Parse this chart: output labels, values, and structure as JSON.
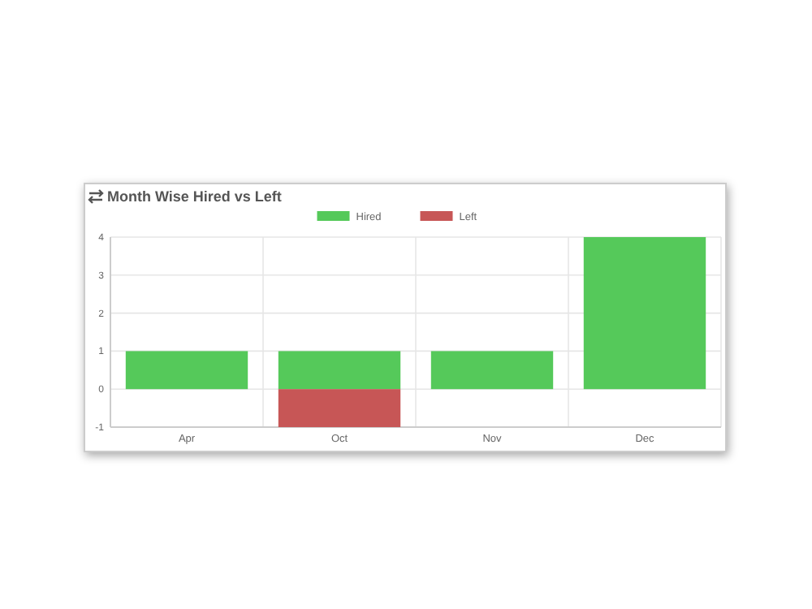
{
  "chart_data": {
    "type": "bar",
    "title": "Month Wise Hired vs Left",
    "categories": [
      "Apr",
      "Oct",
      "Nov",
      "Dec"
    ],
    "stacked": true,
    "series": [
      {
        "name": "Hired",
        "color": "#55c95a",
        "values": [
          1,
          1,
          1,
          4
        ]
      },
      {
        "name": "Left",
        "color": "#c75656",
        "values": [
          null,
          -1,
          null,
          null
        ]
      }
    ],
    "ylim": [
      -1,
      4
    ],
    "yticks": [
      -1,
      0,
      1,
      2,
      3,
      4
    ],
    "grid": true,
    "legend": "top"
  }
}
